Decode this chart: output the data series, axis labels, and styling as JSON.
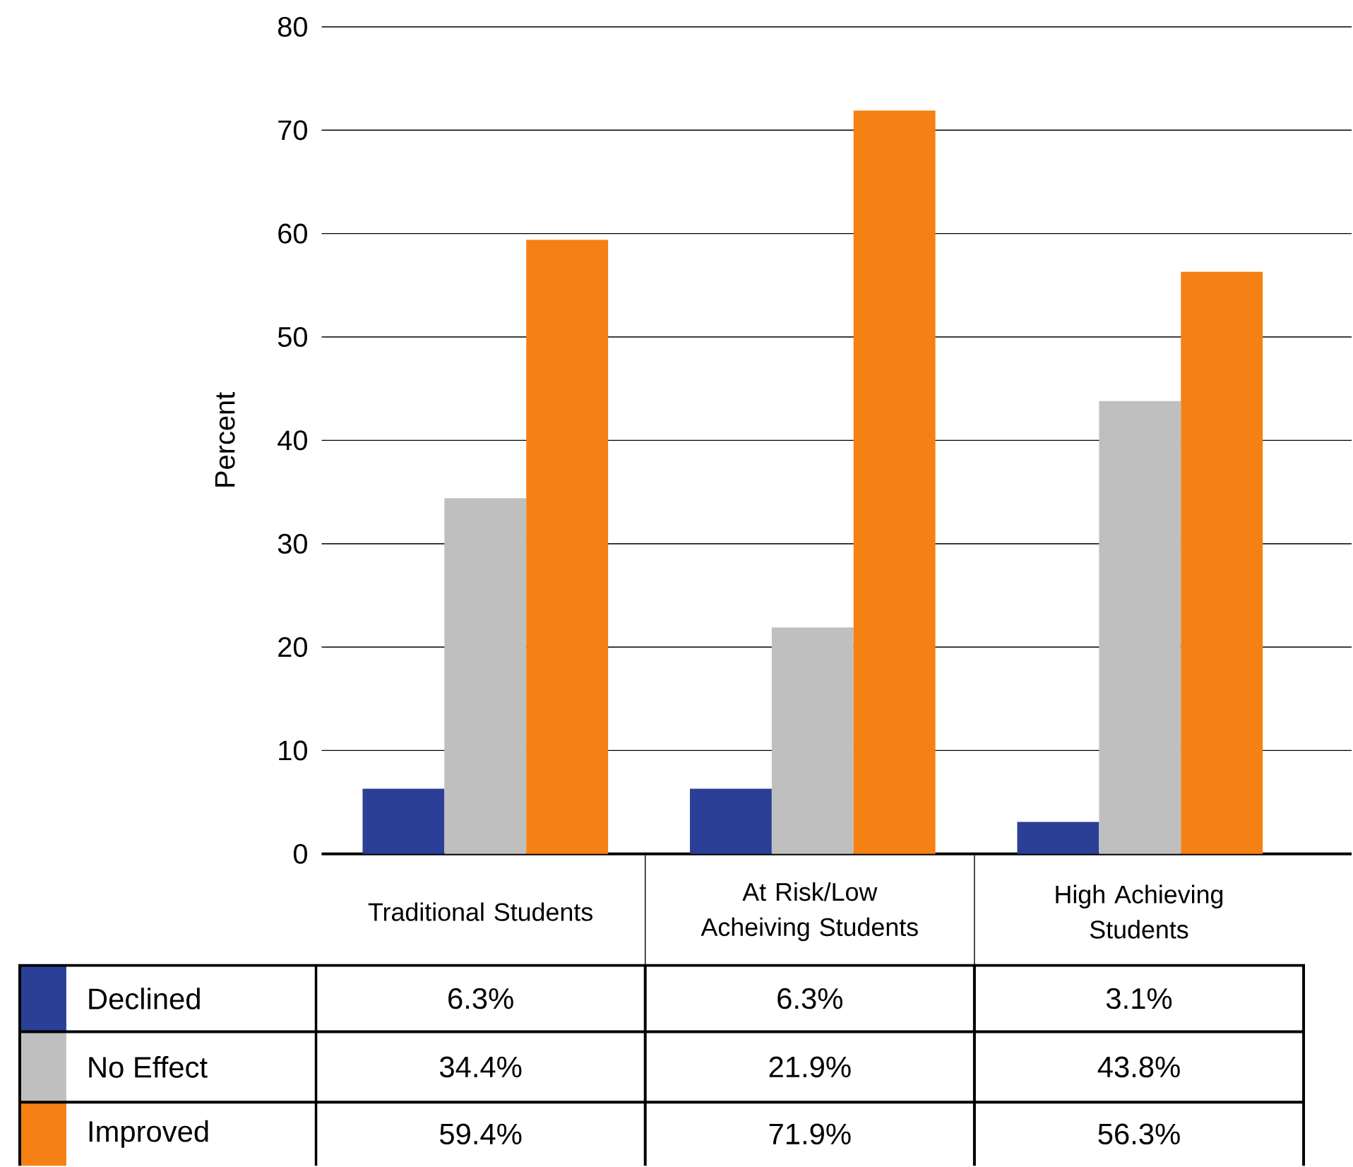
{
  "chart_data": {
    "type": "bar",
    "ylabel": "Percent",
    "categories": [
      "Traditional Students",
      "At Risk/Low Acheiving Students",
      "High Achieving Students"
    ],
    "series": [
      {
        "name": "Declined",
        "color": "#2b3f96",
        "values": [
          6.3,
          6.3,
          3.1
        ],
        "value_labels": [
          "6.3%",
          "6.3%",
          "3.1%"
        ]
      },
      {
        "name": "No Effect",
        "color": "#bfbfbf",
        "values": [
          34.4,
          21.9,
          43.8
        ],
        "value_labels": [
          "34.4%",
          "21.9%",
          "43.8%"
        ]
      },
      {
        "name": "Improved",
        "color": "#f58014",
        "values": [
          59.4,
          71.9,
          56.3
        ],
        "value_labels": [
          "59.4%",
          "71.9%",
          "56.3%"
        ]
      }
    ],
    "ylim": [
      0,
      80
    ],
    "yticks": [
      0,
      10,
      20,
      30,
      40,
      50,
      60,
      70,
      80
    ],
    "grid": "y",
    "legend": "bottom"
  }
}
